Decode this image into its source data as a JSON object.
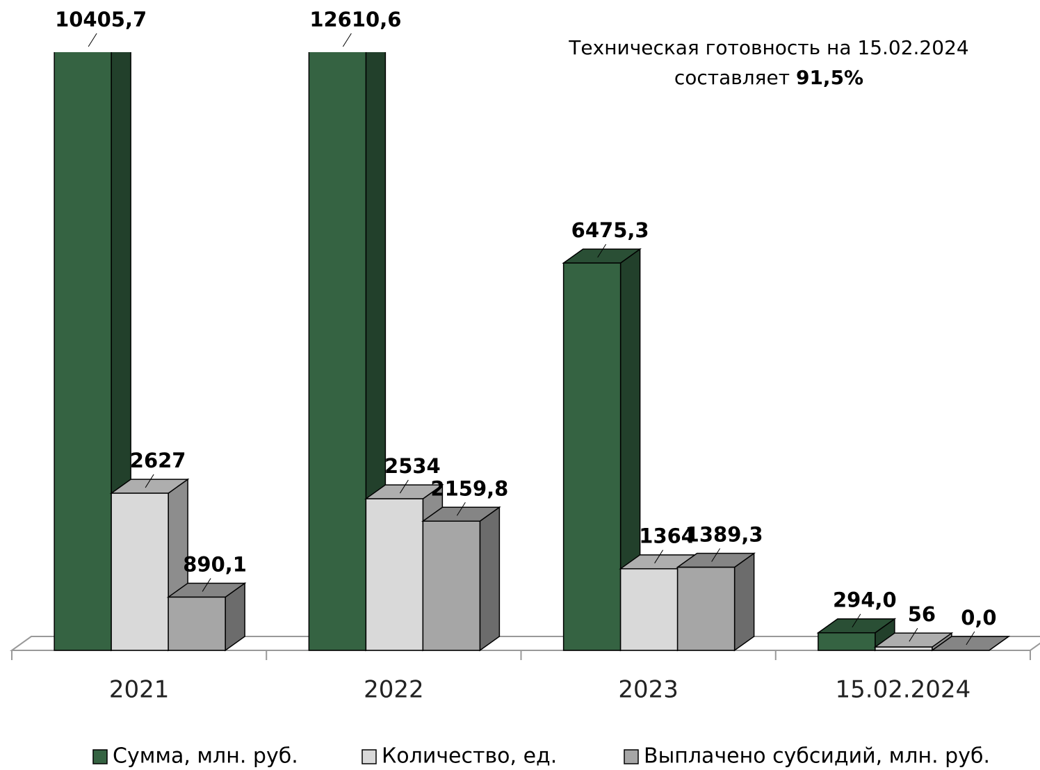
{
  "chart_data": {
    "type": "bar3d",
    "annotation": {
      "line1": "Техническая готовность на 15.02.2024",
      "line2": "составляет",
      "emphasis": "91,5%"
    },
    "categories": [
      "2021",
      "2022",
      "2023",
      "15.02.2024"
    ],
    "series": [
      {
        "name": "Сумма, млн. руб.",
        "color": "#356342",
        "values": [
          10405.7,
          12610.6,
          6475.3,
          294.0
        ],
        "value_labels": [
          "10405,7",
          "12610,6",
          "6475,3",
          "294,0"
        ]
      },
      {
        "name": "Количество, ед.",
        "color": "#d9d9d9",
        "values": [
          2627,
          2534,
          1364,
          56
        ]
      },
      {
        "name": "Выплачено субсидий, млн. руб.",
        "color": "#a6a6a6",
        "values": [
          890.1,
          2159.8,
          1389.3,
          0.0
        ],
        "value_labels": [
          "890,1",
          "2159,8",
          "1389,3",
          "0,0"
        ]
      }
    ],
    "ylim": [
      0,
      10000
    ],
    "legend": "bottom"
  }
}
